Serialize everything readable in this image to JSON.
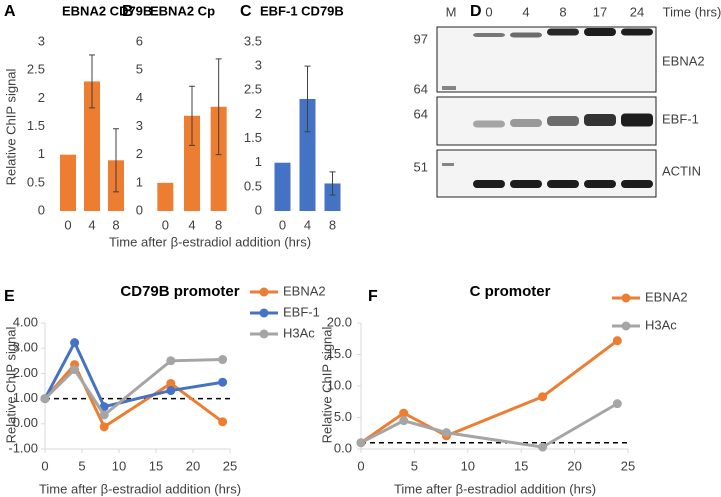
{
  "chart_data": [
    {
      "panel": "A",
      "type": "bar",
      "title": "EBNA2 CD79B",
      "ylabel": "Relative ChIP signal",
      "xlabel": "Time after β-estradiol addition (hrs)",
      "categories": [
        "0",
        "4",
        "8"
      ],
      "values": [
        1,
        2.3,
        0.9
      ],
      "errors": [
        null,
        0.47,
        0.56
      ],
      "color": "#ed7d31",
      "ylim": [
        0,
        3
      ],
      "yticks": [
        0,
        0.5,
        1,
        1.5,
        2,
        2.5,
        3
      ]
    },
    {
      "panel": "B",
      "type": "bar",
      "title": "EBNA2 Cp",
      "categories": [
        "0",
        "4",
        "8"
      ],
      "values": [
        1,
        3.38,
        3.7
      ],
      "errors": [
        null,
        1.05,
        1.7
      ],
      "color": "#ed7d31",
      "ylim": [
        0,
        6
      ],
      "yticks": [
        0,
        1,
        2,
        3,
        4,
        5,
        6
      ]
    },
    {
      "panel": "C",
      "type": "bar",
      "title": "EBF-1 CD79B",
      "categories": [
        "0",
        "4",
        "8"
      ],
      "values": [
        1,
        2.32,
        0.57
      ],
      "errors": [
        null,
        0.68,
        0.24
      ],
      "color": "#4472c4",
      "ylim": [
        0,
        3.5
      ],
      "yticks": [
        0,
        0.5,
        1,
        1.5,
        2,
        2.5,
        3,
        3.5
      ]
    },
    {
      "panel": "E",
      "type": "line",
      "title": "CD79B promoter",
      "ylabel": "Relative ChIP signal",
      "xlabel": "Time after β-estradiol addition (hrs)",
      "x": [
        0,
        4,
        8,
        17,
        24
      ],
      "series": [
        {
          "name": "EBNA2",
          "color": "#ed7d31",
          "values": [
            1.0,
            2.35,
            -0.12,
            1.6,
            0.08
          ]
        },
        {
          "name": "EBF-1",
          "color": "#4472c4",
          "values": [
            1.0,
            3.22,
            0.68,
            1.32,
            1.65
          ]
        },
        {
          "name": "H3Ac",
          "color": "#a5a5a5",
          "values": [
            1.0,
            2.15,
            0.35,
            2.5,
            2.55
          ]
        }
      ],
      "xlim": [
        0,
        25
      ],
      "xticks": [
        0,
        5,
        10,
        15,
        20,
        25
      ],
      "ylim": [
        -1,
        4
      ],
      "yticks": [
        {
          "value": -1,
          "label": "-1.00"
        },
        {
          "value": 0,
          "label": "0.00"
        },
        {
          "value": 1,
          "label": "1.00"
        },
        {
          "value": 2,
          "label": "2.00"
        },
        {
          "value": 3,
          "label": "3.00"
        },
        {
          "value": 4,
          "label": "4.00"
        }
      ],
      "hline": 1
    },
    {
      "panel": "F",
      "type": "line",
      "title": "C promoter",
      "ylabel": "Relative ChIP signal",
      "xlabel": "Time after β-estradiol addition (hrs)",
      "x": [
        0,
        4,
        8,
        17,
        24
      ],
      "series": [
        {
          "name": "EBNA2",
          "color": "#ed7d31",
          "values": [
            1.0,
            5.7,
            2.1,
            8.3,
            17.2
          ]
        },
        {
          "name": "H3Ac",
          "color": "#a5a5a5",
          "values": [
            1.0,
            4.5,
            2.6,
            0.3,
            7.2
          ]
        }
      ],
      "xlim": [
        0,
        25
      ],
      "xticks": [
        0,
        5,
        10,
        15,
        20,
        25
      ],
      "ylim": [
        0,
        20
      ],
      "yticks": [
        {
          "value": 0,
          "label": "0.0"
        },
        {
          "value": 5,
          "label": "5.0"
        },
        {
          "value": 10,
          "label": "10.0"
        },
        {
          "value": 15,
          "label": "15.0"
        },
        {
          "value": 20,
          "label": "20.0"
        }
      ],
      "hline": 1
    }
  ],
  "blot": {
    "panel": "D",
    "lanes": [
      "M",
      "0",
      "4",
      "8",
      "17",
      "24"
    ],
    "time_label": "Time (hrs)",
    "rows": [
      {
        "label": "EBNA2",
        "markers": [
          97,
          64
        ]
      },
      {
        "label": "EBF-1",
        "markers": [
          64
        ]
      },
      {
        "label": "ACTIN",
        "markers": [
          51
        ]
      }
    ]
  }
}
